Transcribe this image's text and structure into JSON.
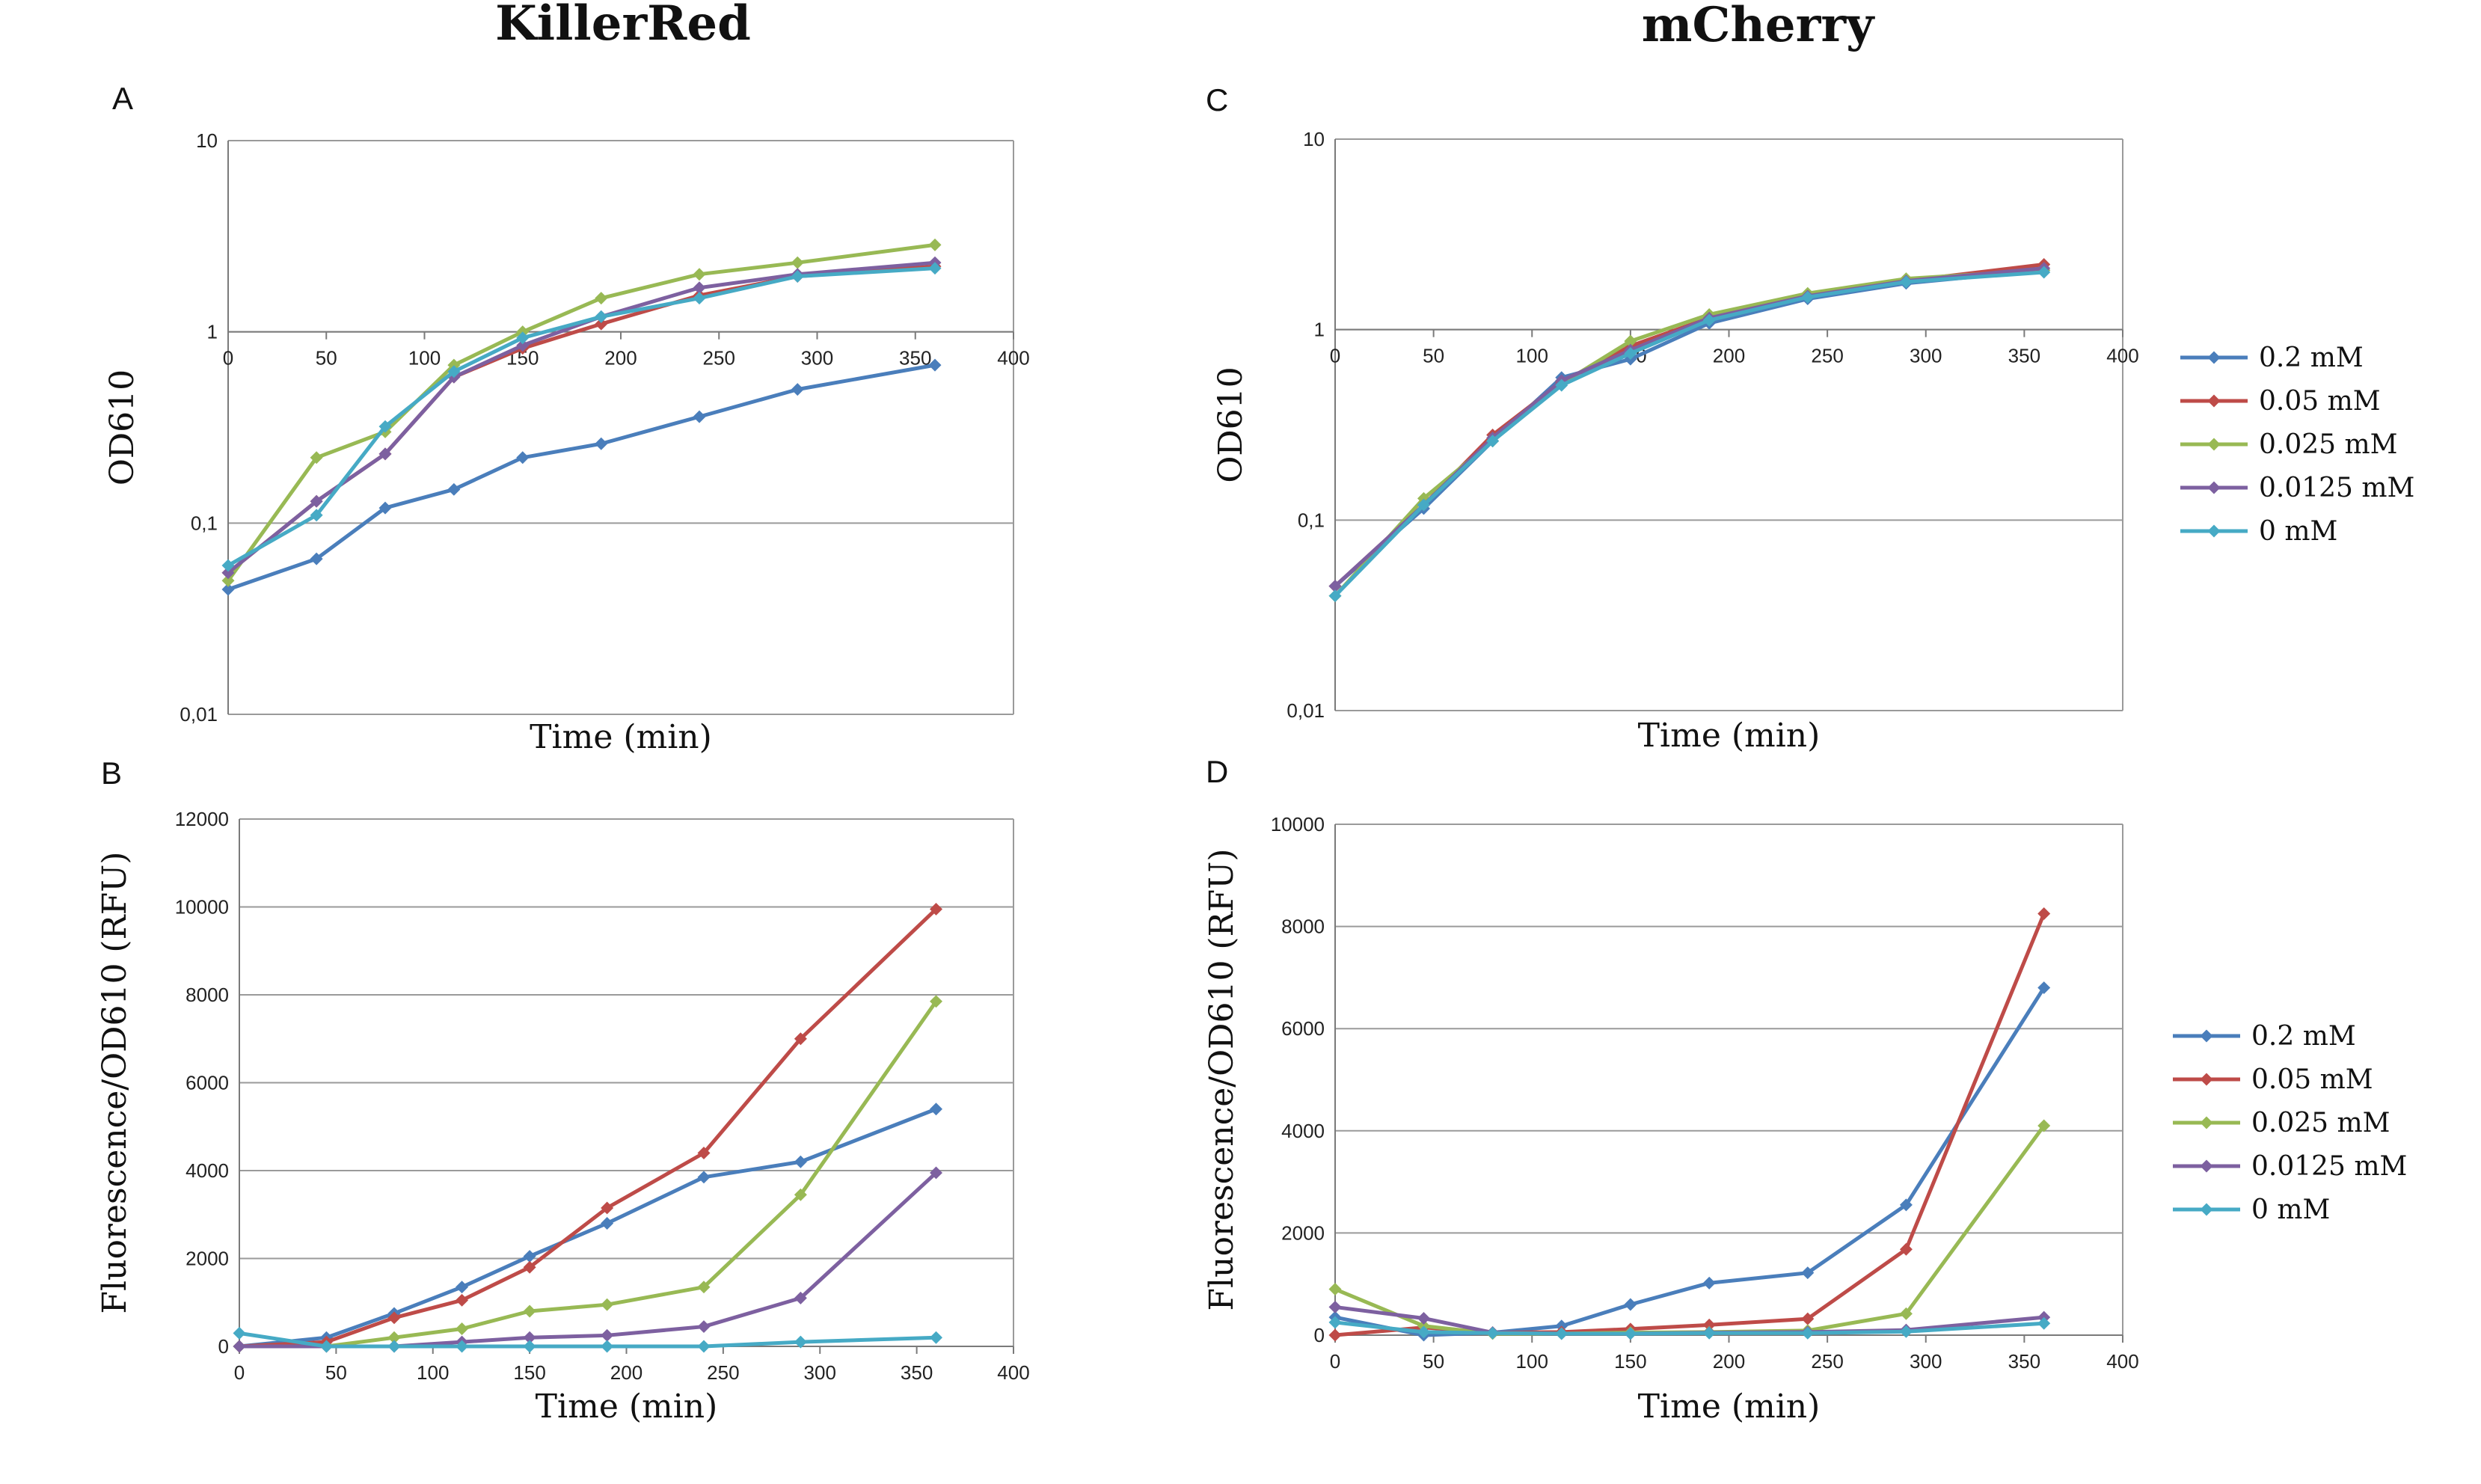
{
  "titles": {
    "left": "KillerRed",
    "right": "mCherry"
  },
  "chart_data": [
    {
      "panel": "A",
      "type": "line",
      "yscale": "log",
      "ylim": [
        0.01,
        10
      ],
      "xlim": [
        0,
        400
      ],
      "x_ticks": [
        "0",
        "50",
        "100",
        "150",
        "200",
        "250",
        "300",
        "350",
        "400"
      ],
      "y_ticks": [
        "0,01",
        "0,1",
        "1",
        "10"
      ],
      "xlabel": "Time (min)",
      "ylabel": "OD610",
      "grid": true,
      "x": [
        0,
        45,
        80,
        115,
        150,
        190,
        240,
        290,
        360
      ],
      "series": [
        {
          "name": "0.2 mM",
          "color": "#4a7ebb",
          "values": [
            0.045,
            0.065,
            0.12,
            0.15,
            0.22,
            0.26,
            0.36,
            0.5,
            0.67
          ]
        },
        {
          "name": "0.05 mM",
          "color": "#be4b48",
          "values": [
            0.055,
            0.13,
            0.23,
            0.58,
            0.82,
            1.1,
            1.55,
            1.95,
            2.2
          ]
        },
        {
          "name": "0.025 mM",
          "color": "#98b954",
          "values": [
            0.05,
            0.22,
            0.3,
            0.67,
            1.0,
            1.5,
            2.0,
            2.3,
            2.85
          ]
        },
        {
          "name": "0.0125 mM",
          "color": "#7d60a0",
          "values": [
            0.055,
            0.13,
            0.23,
            0.58,
            0.85,
            1.2,
            1.7,
            2.0,
            2.3
          ]
        },
        {
          "name": "0 mM",
          "color": "#46aac5",
          "values": [
            0.06,
            0.11,
            0.32,
            0.62,
            0.93,
            1.2,
            1.5,
            1.95,
            2.15
          ]
        }
      ]
    },
    {
      "panel": "B",
      "type": "line",
      "yscale": "linear",
      "ylim": [
        0,
        12000
      ],
      "xlim": [
        0,
        400
      ],
      "x_ticks": [
        "0",
        "50",
        "100",
        "150",
        "200",
        "250",
        "300",
        "350",
        "400"
      ],
      "y_ticks": [
        "0",
        "2000",
        "4000",
        "6000",
        "8000",
        "10000",
        "12000"
      ],
      "xlabel": "Time (min)",
      "ylabel": "Fluorescence/OD610  (RFU)",
      "grid": true,
      "x": [
        0,
        45,
        80,
        115,
        150,
        190,
        240,
        290,
        360
      ],
      "series": [
        {
          "name": "0.2 mM",
          "color": "#4a7ebb",
          "values": [
            0,
            200,
            750,
            1350,
            2050,
            2800,
            3850,
            4200,
            5400
          ]
        },
        {
          "name": "0.05 mM",
          "color": "#be4b48",
          "values": [
            0,
            100,
            650,
            1050,
            1800,
            3150,
            4400,
            7000,
            9950
          ]
        },
        {
          "name": "0.025 mM",
          "color": "#98b954",
          "values": [
            0,
            0,
            200,
            400,
            800,
            950,
            1350,
            3450,
            7850
          ]
        },
        {
          "name": "0.0125 mM",
          "color": "#7d60a0",
          "values": [
            0,
            0,
            0,
            100,
            200,
            250,
            450,
            1100,
            3950
          ]
        },
        {
          "name": "0 mM",
          "color": "#46aac5",
          "values": [
            300,
            0,
            0,
            0,
            0,
            0,
            0,
            100,
            200
          ]
        }
      ]
    },
    {
      "panel": "C",
      "type": "line",
      "yscale": "log",
      "ylim": [
        0.01,
        10
      ],
      "xlim": [
        0,
        400
      ],
      "x_ticks": [
        "0",
        "50",
        "100",
        "150",
        "200",
        "250",
        "300",
        "350",
        "400"
      ],
      "y_ticks": [
        "0,01",
        "0,1",
        "1",
        "10"
      ],
      "xlabel": "Time (min)",
      "ylabel": "OD610",
      "grid": true,
      "legend": "right",
      "x": [
        0,
        45,
        80,
        115,
        150,
        190,
        240,
        290,
        360
      ],
      "series": [
        {
          "name": "0.2 mM",
          "color": "#4a7ebb",
          "values": [
            0.045,
            0.115,
            0.26,
            0.56,
            0.7,
            1.08,
            1.45,
            1.75,
            2.05
          ]
        },
        {
          "name": "0.05 mM",
          "color": "#be4b48",
          "values": [
            0.045,
            0.12,
            0.28,
            0.53,
            0.82,
            1.15,
            1.5,
            1.8,
            2.2
          ]
        },
        {
          "name": "0.025 mM",
          "color": "#98b954",
          "values": [
            0.04,
            0.13,
            0.26,
            0.52,
            0.87,
            1.2,
            1.55,
            1.85,
            2.05
          ]
        },
        {
          "name": "0.0125 mM",
          "color": "#7d60a0",
          "values": [
            0.045,
            0.12,
            0.27,
            0.54,
            0.78,
            1.15,
            1.5,
            1.8,
            2.1
          ]
        },
        {
          "name": "0 mM",
          "color": "#46aac5",
          "values": [
            0.04,
            0.12,
            0.26,
            0.51,
            0.75,
            1.12,
            1.48,
            1.78,
            2.0
          ]
        }
      ]
    },
    {
      "panel": "D",
      "type": "line",
      "yscale": "linear",
      "ylim": [
        0,
        10000
      ],
      "xlim": [
        0,
        400
      ],
      "x_ticks": [
        "0",
        "50",
        "100",
        "150",
        "200",
        "250",
        "300",
        "350",
        "400"
      ],
      "y_ticks": [
        "0",
        "2000",
        "4000",
        "6000",
        "8000",
        "10000"
      ],
      "xlabel": "Time (min)",
      "ylabel": "Fluorescence/OD610  (RFU)",
      "grid": true,
      "legend": "right",
      "x": [
        0,
        45,
        80,
        115,
        150,
        190,
        240,
        290,
        360
      ],
      "series": [
        {
          "name": "0.2 mM",
          "color": "#4a7ebb",
          "values": [
            350,
            0,
            50,
            180,
            600,
            1020,
            1220,
            2550,
            6800
          ]
        },
        {
          "name": "0.05 mM",
          "color": "#be4b48",
          "values": [
            0,
            150,
            50,
            60,
            120,
            200,
            320,
            1680,
            8250
          ]
        },
        {
          "name": "0.025 mM",
          "color": "#98b954",
          "values": [
            900,
            180,
            30,
            30,
            50,
            60,
            90,
            420,
            4100
          ]
        },
        {
          "name": "0.0125 mM",
          "color": "#7d60a0",
          "values": [
            550,
            330,
            50,
            30,
            30,
            50,
            60,
            100,
            350
          ]
        },
        {
          "name": "0 mM",
          "color": "#46aac5",
          "values": [
            250,
            60,
            40,
            30,
            30,
            40,
            40,
            70,
            230
          ]
        }
      ]
    }
  ]
}
